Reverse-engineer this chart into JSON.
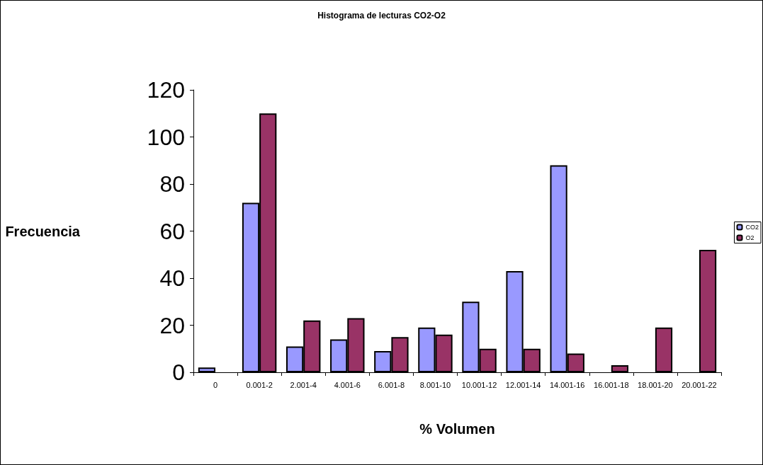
{
  "chart_data": {
    "type": "bar",
    "title": "Histograma de lecturas CO2-O2",
    "xlabel": "% Volumen",
    "ylabel": "Frecuencia",
    "categories": [
      "0",
      "0.001-2",
      "2.001-4",
      "4.001-6",
      "6.001-8",
      "8.001-10",
      "10.001-12",
      "12.001-14",
      "14.001-16",
      "16.001-18",
      "18.001-20",
      "20.001-22"
    ],
    "series": [
      {
        "name": "CO2",
        "color": "#9999ff",
        "values": [
          2,
          72,
          11,
          14,
          9,
          19,
          30,
          43,
          88,
          0,
          0,
          0
        ]
      },
      {
        "name": "O2",
        "color": "#993366",
        "values": [
          0,
          110,
          22,
          23,
          15,
          16,
          10,
          10,
          8,
          3,
          19,
          52
        ]
      }
    ],
    "ylim": [
      0,
      120
    ],
    "yticks": [
      0,
      20,
      40,
      60,
      80,
      100,
      120
    ],
    "grid": false,
    "legend": "right"
  }
}
